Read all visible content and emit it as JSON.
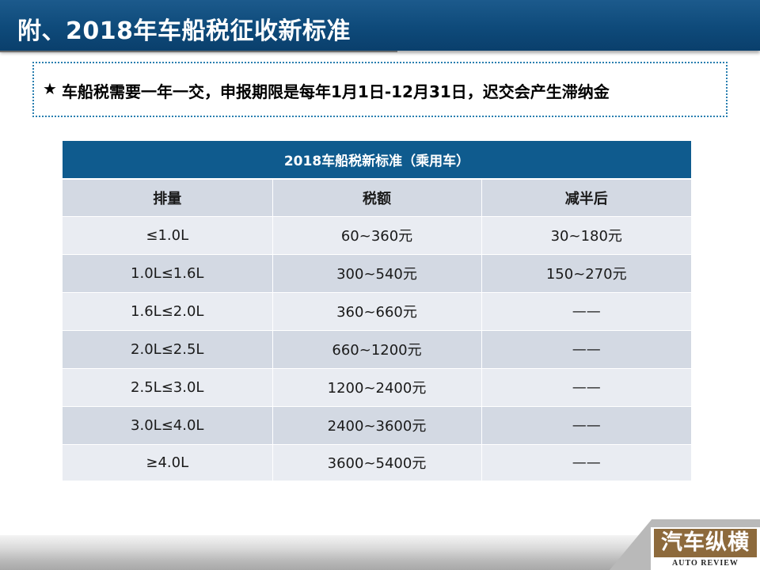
{
  "slide": {
    "title": "附、2018年车船税征收新标准",
    "notice": {
      "star": "★",
      "text": "车船税需要一年一交，申报期限是每年1月1日-12月31日，迟交会产生滞纳金"
    }
  },
  "table": {
    "caption": "2018车船税新标准（乘用车）",
    "headers": [
      "排量",
      "税额",
      "减半后"
    ],
    "rows": [
      [
        "≤1.0L",
        "60~360元",
        "30~180元"
      ],
      [
        "1.0L≤1.6L",
        "300~540元",
        "150~270元"
      ],
      [
        "1.6L≤2.0L",
        "360~660元",
        "——"
      ],
      [
        "2.0L≤2.5L",
        "660~1200元",
        "——"
      ],
      [
        "2.5L≤3.0L",
        "1200~2400元",
        "——"
      ],
      [
        "3.0L≤4.0L",
        "2400~3600元",
        "——"
      ],
      [
        "≥4.0L",
        "3600~5400元",
        "——"
      ]
    ]
  },
  "logo": {
    "main": "汽车纵横",
    "sub": "AUTO REVIEW"
  },
  "colors": {
    "title_bar": "#0e4a7a",
    "table_header": "#0f5b8e",
    "row_light": "#e9ecf2",
    "row_dark": "#d3d9e3",
    "notice_border": "#2a7fb0",
    "logo_bg": "#8d6a3c"
  }
}
